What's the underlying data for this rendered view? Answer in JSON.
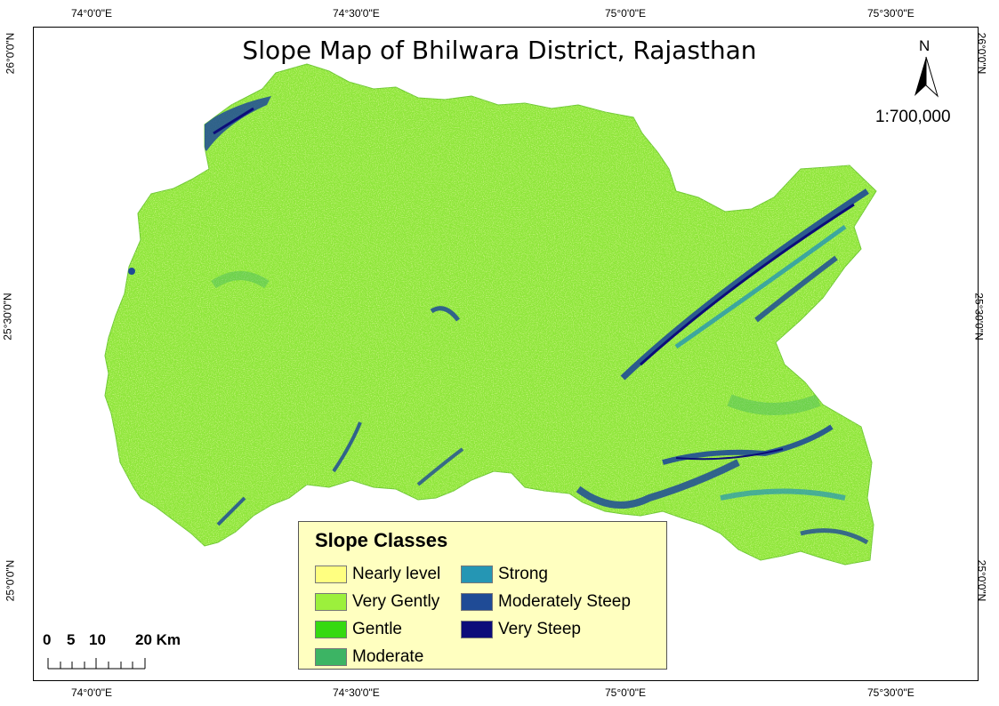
{
  "title": "Slope Map of Bhilwara District, Rajasthan",
  "north_arrow": {
    "letter": "N",
    "icon": "north-arrow-icon"
  },
  "scale_ratio": "1:700,000",
  "graticule": {
    "top_labels": [
      "74°0'0\"E",
      "74°30'0\"E",
      "75°0'0\"E",
      "75°30'0\"E"
    ],
    "bottom_labels": [
      "74°0'0\"E",
      "74°30'0\"E",
      "75°0'0\"E",
      "75°30'0\"E"
    ],
    "left_labels": [
      "26°0'0\"N",
      "25°30'0\"N",
      "25°0'0\"N"
    ],
    "right_labels": [
      "26°0'0\"N",
      "25°30'0\"N",
      "25°0'0\"N"
    ]
  },
  "legend": {
    "title": "Slope Classes",
    "items": [
      {
        "label": "Nearly level",
        "color": "#ffff80"
      },
      {
        "label": "Very Gently",
        "color": "#9cf03c"
      },
      {
        "label": "Gentle",
        "color": "#36d911"
      },
      {
        "label": "Moderate",
        "color": "#3cb464"
      },
      {
        "label": "Strong",
        "color": "#2596b4"
      },
      {
        "label": "Moderately Steep",
        "color": "#1f4b96"
      },
      {
        "label": "Very Steep",
        "color": "#0c0c7a"
      }
    ]
  },
  "scale_bar": {
    "labels": [
      "0",
      "5",
      "10",
      "20 Km"
    ]
  }
}
